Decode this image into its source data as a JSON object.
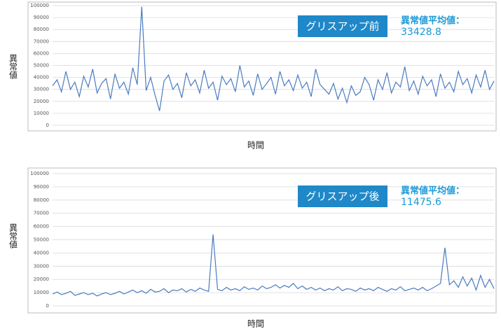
{
  "chart_data": [
    {
      "type": "line",
      "y_label": "異常値",
      "x_label": "時間",
      "badge": "グリスアップ前",
      "mean_label": "異常値平均値：",
      "mean": 33428.8,
      "ylim": [
        0,
        100000
      ],
      "yticks": [
        0,
        10000,
        20000,
        30000,
        40000,
        50000,
        60000,
        70000,
        80000,
        90000,
        100000
      ],
      "grid": true,
      "color": "#4a7bc0",
      "values": [
        33000,
        38000,
        28000,
        45000,
        30000,
        36000,
        24000,
        41000,
        32000,
        47000,
        27000,
        35000,
        39000,
        22000,
        43000,
        31000,
        36000,
        26000,
        48000,
        34000,
        99000,
        29000,
        40000,
        25000,
        12000,
        37000,
        42000,
        30000,
        35000,
        23000,
        44000,
        33000,
        38000,
        27000,
        46000,
        31000,
        36000,
        21000,
        41000,
        34000,
        39000,
        28000,
        50000,
        32000,
        37000,
        25000,
        43000,
        30000,
        35000,
        40000,
        26000,
        45000,
        33000,
        38000,
        29000,
        42000,
        31000,
        36000,
        24000,
        47000,
        34000,
        30000,
        26000,
        35000,
        22000,
        31000,
        19000,
        33000,
        25000,
        28000,
        40000,
        34000,
        21000,
        38000,
        30000,
        44000,
        27000,
        36000,
        32000,
        49000,
        29000,
        37000,
        26000,
        41000,
        33000,
        38000,
        24000,
        43000,
        31000,
        36000,
        28000,
        45000,
        34000,
        39000,
        27000,
        42000,
        32000,
        46000,
        30000,
        37000
      ]
    },
    {
      "type": "line",
      "y_label": "異常値",
      "x_label": "時間",
      "badge": "グリスアップ後",
      "mean_label": "異常値平均値：",
      "mean": 11475.6,
      "ylim": [
        0,
        100000
      ],
      "yticks": [
        0,
        10000,
        20000,
        30000,
        40000,
        50000,
        60000,
        70000,
        80000,
        90000,
        100000
      ],
      "grid": true,
      "color": "#4a7bc0",
      "values": [
        9000,
        10500,
        8500,
        9500,
        11000,
        8000,
        9000,
        10000,
        8500,
        9500,
        7500,
        9000,
        10000,
        8500,
        9500,
        11000,
        9000,
        10500,
        12000,
        10000,
        11500,
        9500,
        12500,
        10500,
        11000,
        13000,
        10000,
        12000,
        11500,
        13000,
        10500,
        12500,
        11000,
        13500,
        12000,
        11000,
        54000,
        12500,
        11500,
        14000,
        12000,
        13000,
        11500,
        14500,
        12500,
        13500,
        12000,
        15000,
        13000,
        14000,
        16000,
        13500,
        15500,
        14000,
        17000,
        13000,
        15000,
        12500,
        14000,
        12000,
        13500,
        11500,
        13000,
        12000,
        14500,
        11500,
        13000,
        12500,
        11000,
        13500,
        12000,
        13000,
        11500,
        14000,
        12500,
        11000,
        13000,
        12000,
        14500,
        11500,
        12500,
        13500,
        12000,
        14000,
        11500,
        13000,
        15000,
        17000,
        44000,
        16000,
        19000,
        14000,
        22000,
        15000,
        21000,
        12000,
        23000,
        14000,
        20000,
        13000
      ]
    }
  ]
}
